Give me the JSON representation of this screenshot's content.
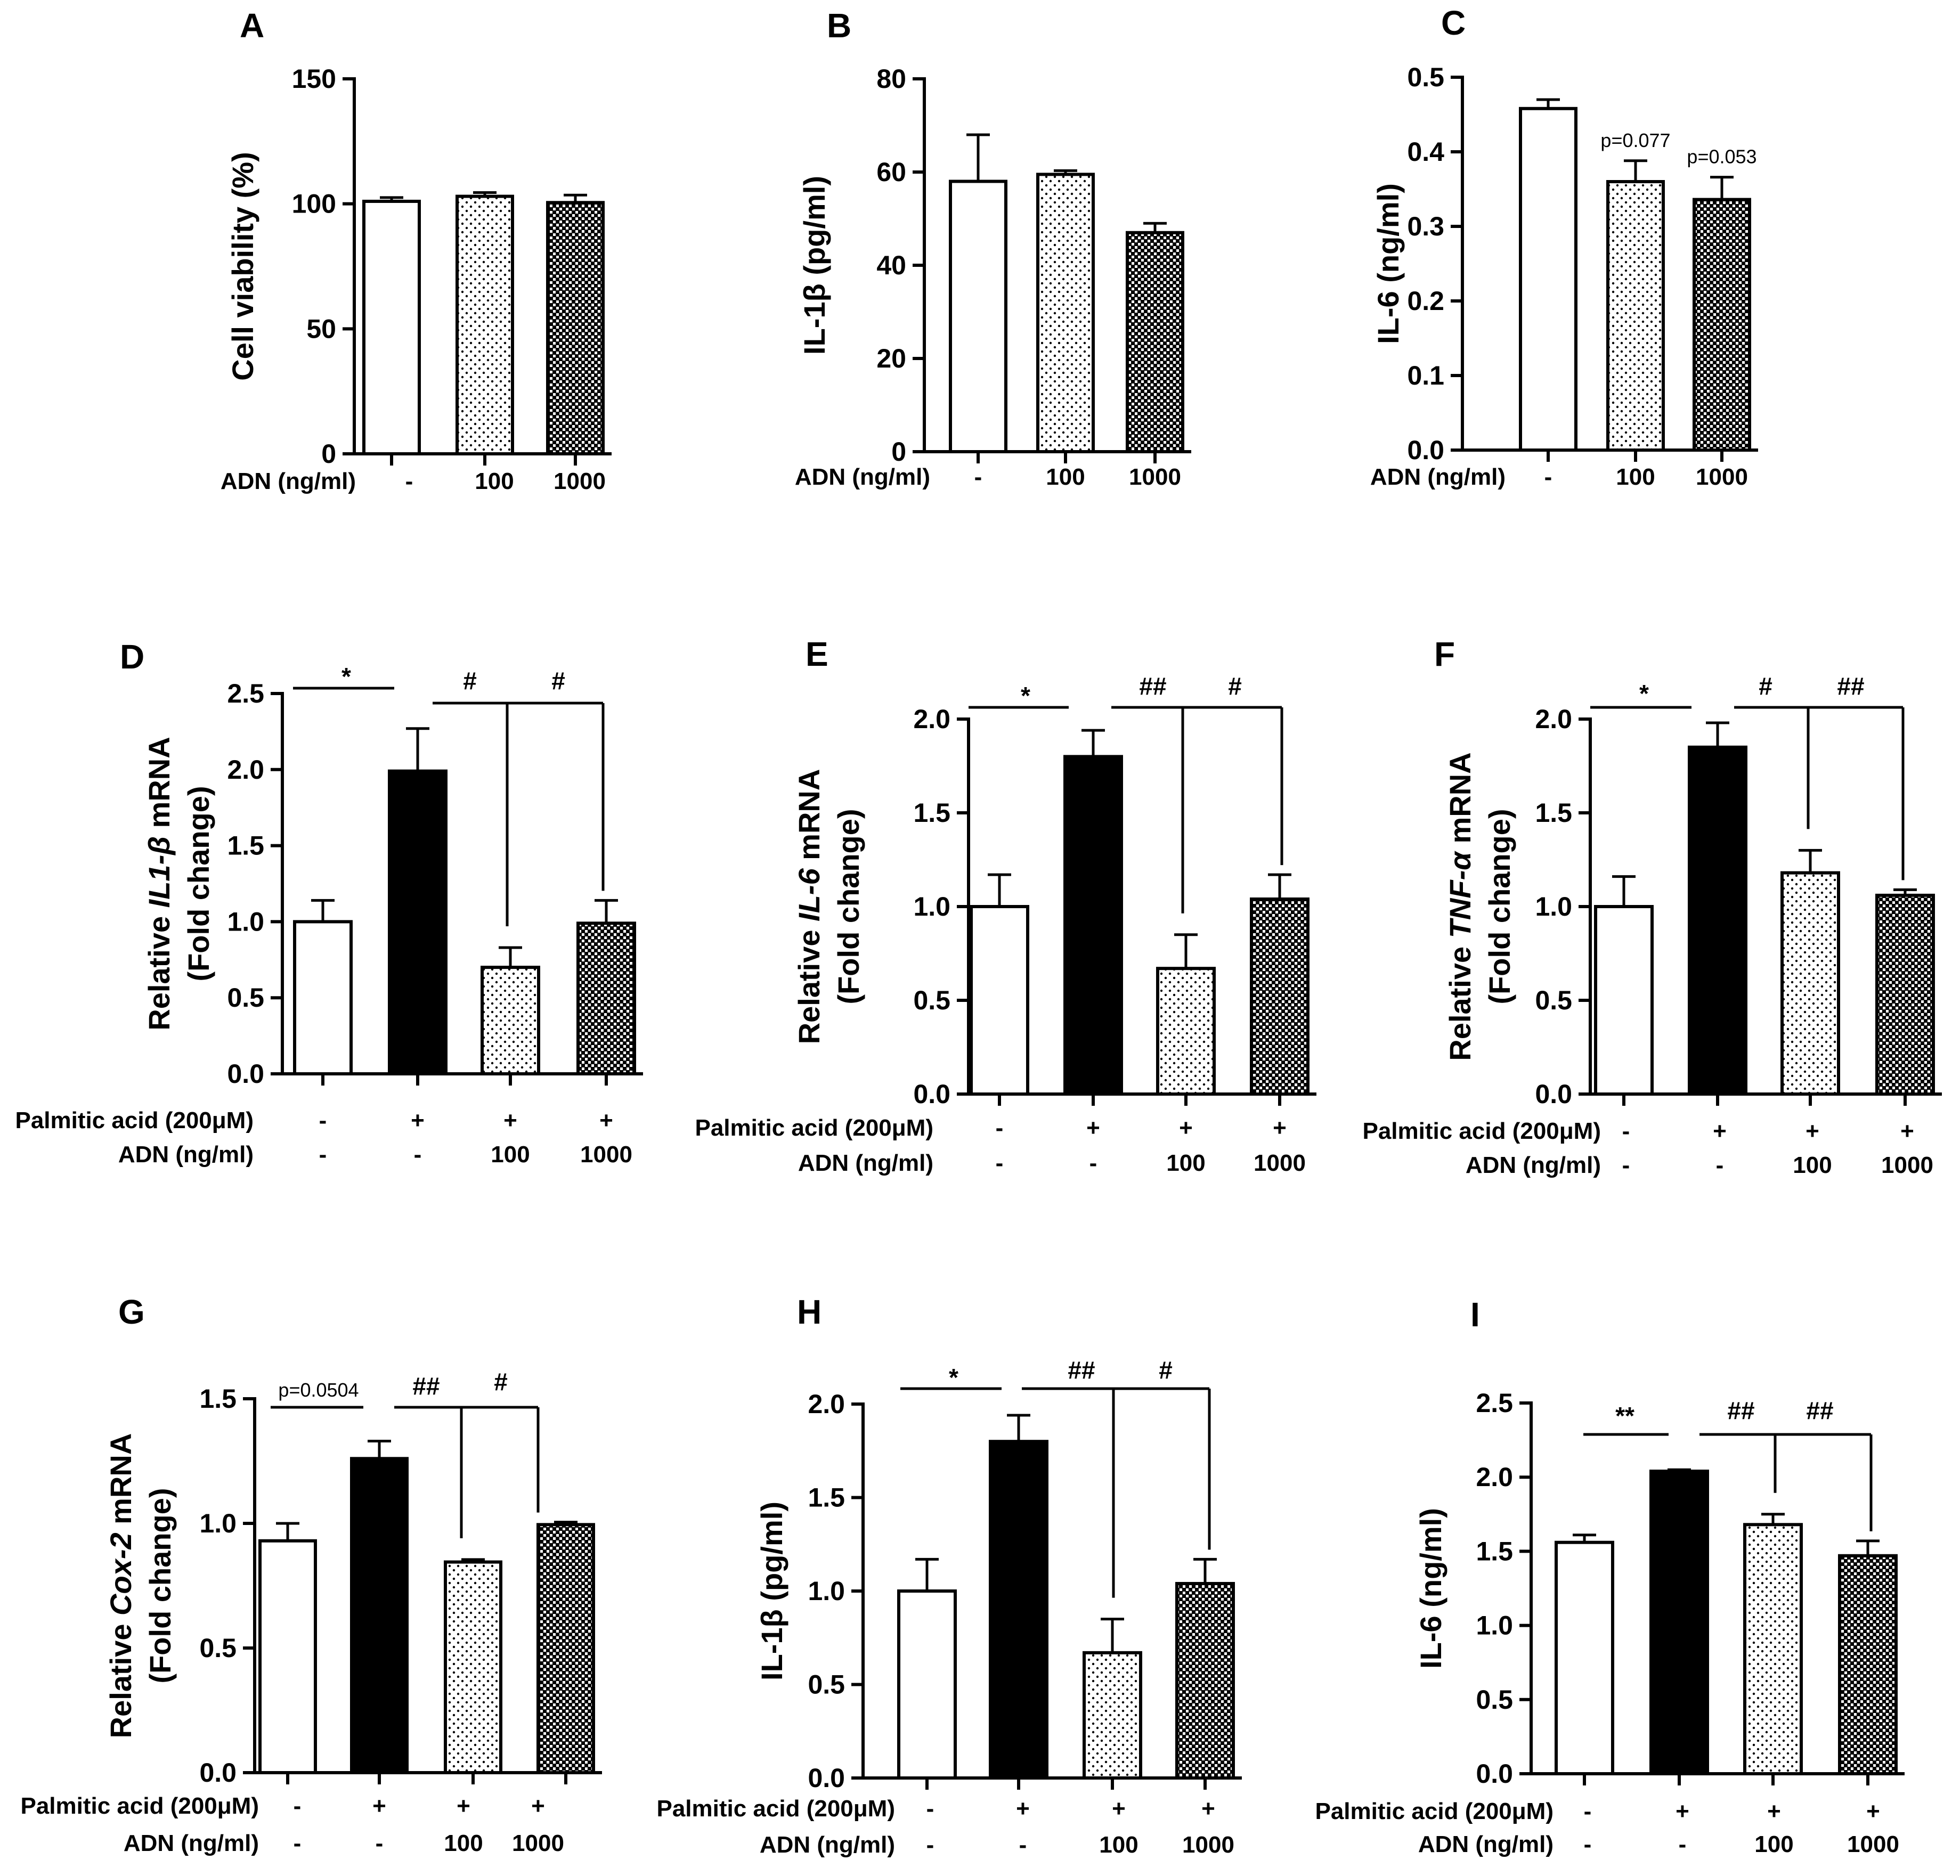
{
  "colors": {
    "black": "#000000",
    "white": "#ffffff"
  },
  "chart_data": [
    {
      "id": "A",
      "type": "bar",
      "panel_label": "A",
      "ylabel_parts": [
        {
          "text": "Cell viability (%)",
          "italic": false
        }
      ],
      "ylim": [
        0,
        150
      ],
      "yticks": [
        "0",
        "50",
        "100",
        "150"
      ],
      "ytick_values": [
        0,
        50,
        100,
        150
      ],
      "rows": [
        {
          "label": "ADN (ng/ml)",
          "values": [
            "-",
            "100",
            "1000"
          ]
        }
      ],
      "bars": [
        {
          "value": 101,
          "error": 1.5,
          "fill": "white"
        },
        {
          "value": 103,
          "error": 1.5,
          "fill": "light"
        },
        {
          "value": 100.5,
          "error": 3,
          "fill": "dark"
        }
      ],
      "annotations": [],
      "pvalues": []
    },
    {
      "id": "B",
      "type": "bar",
      "panel_label": "B",
      "ylabel_parts": [
        {
          "text": "IL-1β (pg/ml)",
          "italic": false
        }
      ],
      "ylim": [
        0,
        80
      ],
      "yticks": [
        "0",
        "20",
        "40",
        "60",
        "80"
      ],
      "ytick_values": [
        0,
        20,
        40,
        60,
        80
      ],
      "rows": [
        {
          "label": "ADN (ng/ml)",
          "values": [
            "-",
            "100",
            "1000"
          ]
        }
      ],
      "bars": [
        {
          "value": 58,
          "error": 10,
          "fill": "white"
        },
        {
          "value": 59.5,
          "error": 0.8,
          "fill": "light"
        },
        {
          "value": 47,
          "error": 2,
          "fill": "dark"
        }
      ],
      "annotations": [],
      "pvalues": []
    },
    {
      "id": "C",
      "type": "bar",
      "panel_label": "C",
      "ylabel_parts": [
        {
          "text": "IL-6 (ng/ml)",
          "italic": false
        }
      ],
      "ylim": [
        0,
        0.5
      ],
      "yticks": [
        "0.0",
        "0.1",
        "0.2",
        "0.3",
        "0.4",
        "0.5"
      ],
      "ytick_values": [
        0,
        0.1,
        0.2,
        0.3,
        0.4,
        0.5
      ],
      "rows": [
        {
          "label": "ADN (ng/ml)",
          "values": [
            "-",
            "100",
            "1000"
          ]
        }
      ],
      "bars": [
        {
          "value": 0.458,
          "error": 0.012,
          "fill": "white"
        },
        {
          "value": 0.36,
          "error": 0.028,
          "fill": "light"
        },
        {
          "value": 0.336,
          "error": 0.03,
          "fill": "dark"
        }
      ],
      "annotations": [],
      "pvalues": [
        {
          "bar": 1,
          "text": "p=0.077"
        },
        {
          "bar": 2,
          "text": "p=0.053"
        }
      ]
    },
    {
      "id": "D",
      "type": "bar",
      "panel_label": "D",
      "ylabel_parts": [
        {
          "text": "Relative ",
          "italic": false
        },
        {
          "text": "IL1-β",
          "italic": true
        },
        {
          "text": " mRNA",
          "italic": false
        }
      ],
      "ylabel_line2": "(Fold change)",
      "ylim": [
        0,
        2.5
      ],
      "yticks": [
        "0.0",
        "0.5",
        "1.0",
        "1.5",
        "2.0",
        "2.5"
      ],
      "ytick_values": [
        0,
        0.5,
        1.0,
        1.5,
        2.0,
        2.5
      ],
      "rows": [
        {
          "label": "Palmitic acid (200μM)",
          "values": [
            "-",
            "+",
            "+",
            "+"
          ]
        },
        {
          "label": "ADN (ng/ml)",
          "values": [
            "-",
            "-",
            "100",
            "1000"
          ]
        }
      ],
      "bars": [
        {
          "value": 1.0,
          "error": 0.14,
          "fill": "white"
        },
        {
          "value": 1.99,
          "error": 0.28,
          "fill": "black"
        },
        {
          "value": 0.7,
          "error": 0.13,
          "fill": "light"
        },
        {
          "value": 0.99,
          "error": 0.15,
          "fill": "dark"
        }
      ],
      "annotations": [
        {
          "text": "*"
        },
        {
          "text": "#"
        },
        {
          "text": "#"
        }
      ],
      "pvalues": []
    },
    {
      "id": "E",
      "type": "bar",
      "panel_label": "E",
      "ylabel_parts": [
        {
          "text": "Relative ",
          "italic": false
        },
        {
          "text": "IL-6",
          "italic": true
        },
        {
          "text": " mRNA",
          "italic": false
        }
      ],
      "ylabel_line2": "(Fold change)",
      "ylim": [
        0,
        2.0
      ],
      "yticks": [
        "0.0",
        "0.5",
        "1.0",
        "1.5",
        "2.0"
      ],
      "ytick_values": [
        0,
        0.5,
        1.0,
        1.5,
        2.0
      ],
      "rows": [
        {
          "label": "Palmitic acid (200μM)",
          "values": [
            "-",
            "+",
            "+",
            "+"
          ]
        },
        {
          "label": "ADN (ng/ml)",
          "values": [
            "-",
            "-",
            "100",
            "1000"
          ]
        }
      ],
      "bars": [
        {
          "value": 1.0,
          "error": 0.17,
          "fill": "white"
        },
        {
          "value": 1.8,
          "error": 0.14,
          "fill": "black"
        },
        {
          "value": 0.67,
          "error": 0.18,
          "fill": "light"
        },
        {
          "value": 1.04,
          "error": 0.13,
          "fill": "dark"
        }
      ],
      "annotations": [
        {
          "text": "*"
        },
        {
          "text": "##"
        },
        {
          "text": "#"
        }
      ],
      "pvalues": []
    },
    {
      "id": "F",
      "type": "bar",
      "panel_label": "F",
      "ylabel_parts": [
        {
          "text": "Relative ",
          "italic": false
        },
        {
          "text": "TNF-α",
          "italic": true
        },
        {
          "text": " mRNA",
          "italic": false
        }
      ],
      "ylabel_line2": "(Fold change)",
      "ylim": [
        0,
        2.0
      ],
      "yticks": [
        "0.0",
        "0.5",
        "1.0",
        "1.5",
        "2.0"
      ],
      "ytick_values": [
        0,
        0.5,
        1.0,
        1.5,
        2.0
      ],
      "rows": [
        {
          "label": "Palmitic acid (200μM)",
          "values": [
            "-",
            "+",
            "+",
            "+"
          ]
        },
        {
          "label": "ADN (ng/ml)",
          "values": [
            "-",
            "-",
            "100",
            "1000"
          ]
        }
      ],
      "bars": [
        {
          "value": 1.0,
          "error": 0.16,
          "fill": "white"
        },
        {
          "value": 1.85,
          "error": 0.13,
          "fill": "black"
        },
        {
          "value": 1.18,
          "error": 0.12,
          "fill": "light"
        },
        {
          "value": 1.06,
          "error": 0.03,
          "fill": "dark"
        }
      ],
      "annotations": [
        {
          "text": "*"
        },
        {
          "text": "#"
        },
        {
          "text": "##"
        }
      ],
      "pvalues": []
    },
    {
      "id": "G",
      "type": "bar",
      "panel_label": "G",
      "ylabel_parts": [
        {
          "text": "Relative ",
          "italic": false
        },
        {
          "text": "Cox-2",
          "italic": true
        },
        {
          "text": " mRNA",
          "italic": false
        }
      ],
      "ylabel_line2": "(Fold change)",
      "ylim": [
        0,
        1.5
      ],
      "yticks": [
        "0.0",
        "0.5",
        "1.0",
        "1.5"
      ],
      "ytick_values": [
        0,
        0.5,
        1.0,
        1.5
      ],
      "rows": [
        {
          "label": "Palmitic acid (200μM)",
          "values": [
            "-",
            "+",
            "+",
            "+"
          ]
        },
        {
          "label": "ADN (ng/ml)",
          "values": [
            "-",
            "-",
            "100",
            "1000"
          ]
        }
      ],
      "bars": [
        {
          "value": 0.93,
          "error": 0.07,
          "fill": "white"
        },
        {
          "value": 1.26,
          "error": 0.07,
          "fill": "black"
        },
        {
          "value": 0.845,
          "error": 0.01,
          "fill": "light"
        },
        {
          "value": 0.995,
          "error": 0.01,
          "fill": "dark"
        }
      ],
      "annotations": [
        {
          "text": "p=0.0504"
        },
        {
          "text": "##"
        },
        {
          "text": "#"
        }
      ],
      "pvalues": []
    },
    {
      "id": "H",
      "type": "bar",
      "panel_label": "H",
      "ylabel_parts": [
        {
          "text": "IL-1β (pg/ml)",
          "italic": false
        }
      ],
      "ylim": [
        0,
        2.0
      ],
      "yticks": [
        "0.0",
        "0.5",
        "1.0",
        "1.5",
        "2.0"
      ],
      "ytick_values": [
        0,
        0.5,
        1.0,
        1.5,
        2.0
      ],
      "rows": [
        {
          "label": "Palmitic acid (200μM)",
          "values": [
            "-",
            "+",
            "+",
            "+"
          ]
        },
        {
          "label": "ADN (ng/ml)",
          "values": [
            "-",
            "-",
            "100",
            "1000"
          ]
        }
      ],
      "bars": [
        {
          "value": 1.0,
          "error": 0.17,
          "fill": "white"
        },
        {
          "value": 1.8,
          "error": 0.14,
          "fill": "black"
        },
        {
          "value": 0.67,
          "error": 0.18,
          "fill": "light"
        },
        {
          "value": 1.04,
          "error": 0.13,
          "fill": "dark"
        }
      ],
      "annotations": [
        {
          "text": "*"
        },
        {
          "text": "##"
        },
        {
          "text": "#"
        }
      ],
      "pvalues": []
    },
    {
      "id": "I",
      "type": "bar",
      "panel_label": "I",
      "ylabel_parts": [
        {
          "text": "IL-6 (ng/ml)",
          "italic": false
        }
      ],
      "ylim": [
        0,
        2.5
      ],
      "yticks": [
        "0.0",
        "0.5",
        "1.0",
        "1.5",
        "2.0",
        "2.5"
      ],
      "ytick_values": [
        0,
        0.5,
        1.0,
        1.5,
        2.0,
        2.5
      ],
      "rows": [
        {
          "label": "Palmitic acid (200μM)",
          "values": [
            "-",
            "+",
            "+",
            "+"
          ]
        },
        {
          "label": "ADN (ng/ml)",
          "values": [
            "-",
            "-",
            "100",
            "1000"
          ]
        }
      ],
      "bars": [
        {
          "value": 1.56,
          "error": 0.05,
          "fill": "white"
        },
        {
          "value": 2.04,
          "error": 0.01,
          "fill": "black"
        },
        {
          "value": 1.68,
          "error": 0.07,
          "fill": "light"
        },
        {
          "value": 1.47,
          "error": 0.1,
          "fill": "dark"
        }
      ],
      "annotations": [
        {
          "text": "**"
        },
        {
          "text": "##"
        },
        {
          "text": "##"
        }
      ],
      "pvalues": []
    }
  ]
}
